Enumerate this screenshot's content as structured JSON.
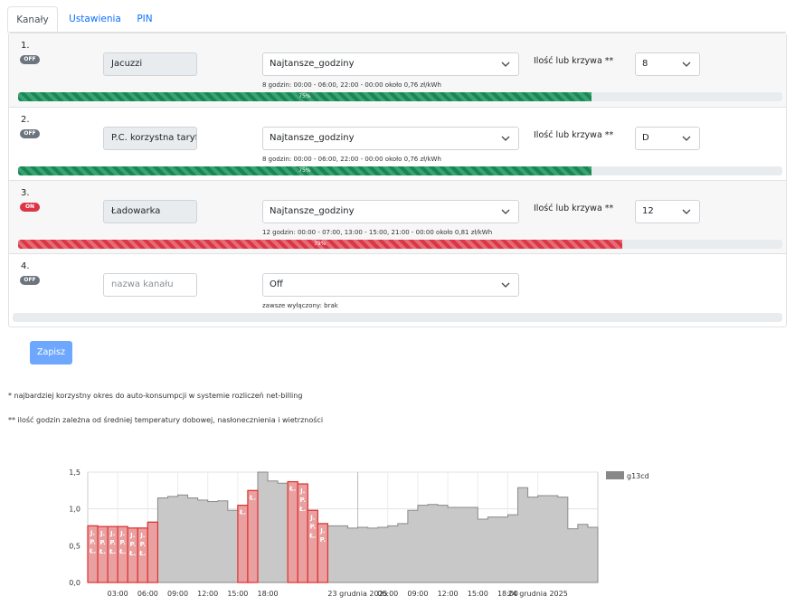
{
  "tabs": [
    {
      "label": "Kanały",
      "active": true
    },
    {
      "label": "Ustawienia",
      "active": false
    },
    {
      "label": "PIN",
      "active": false
    }
  ],
  "channels": [
    {
      "number": "1.",
      "status": "OFF",
      "name": "Jacuzzi",
      "mode": "Najtansze_godziny",
      "ilosc_label": "Ilość lub krzywa **",
      "ilosc_value": "8",
      "description": "8 godzin: 00:00 - 06:00, 22:00 - 00:00 około 0,76 zł/kWh",
      "progress": 75,
      "progress_label": "75%",
      "progress_color": "#198754"
    },
    {
      "number": "2.",
      "status": "OFF",
      "name": "P.C. korzystna taryf",
      "mode": "Najtansze_godziny",
      "ilosc_label": "Ilość lub krzywa **",
      "ilosc_value": "D",
      "description": "8 godzin: 00:00 - 06:00, 22:00 - 00:00 około 0,76 zł/kWh",
      "progress": 75,
      "progress_label": "75%",
      "progress_color": "#198754"
    },
    {
      "number": "3.",
      "status": "ON",
      "name": "Ładowarka",
      "mode": "Najtansze_godziny",
      "ilosc_label": "Ilość lub krzywa **",
      "ilosc_value": "12",
      "description": "12 godzin: 00:00 - 07:00, 13:00 - 15:00, 21:00 - 00:00 około 0,81 zł/kWh",
      "progress": 79,
      "progress_label": "79%",
      "progress_color": "#dc3545"
    },
    {
      "number": "4.",
      "status": "OFF",
      "name": "",
      "name_placeholder": "nazwa kanału",
      "mode": "Off",
      "description": "zawsze wyłączony: brak",
      "progress": 0,
      "progress_label": ""
    }
  ],
  "save_label": "Zapisz",
  "notes": [
    "* najbardziej korzystny okres do auto-konsumpcji w systemie rozliczeń net-billing",
    "** ilość godzin zależna od średniej temperatury dobowej, nasłonecznienia i wietrzności"
  ],
  "chart_data": {
    "type": "area",
    "legend": "g13cd",
    "legend_position": "top-right",
    "grid": true,
    "ylim": [
      0,
      1.5
    ],
    "yticks": [
      "0,0",
      "0,5",
      "1,0",
      "1,5"
    ],
    "xticks": [
      "03:00",
      "06:00",
      "09:00",
      "12:00",
      "15:00",
      "18:00",
      "23 grudnia 2025",
      "06:00",
      "09:00",
      "12:00",
      "15:00",
      "18:00",
      "24 grudnia 2025"
    ],
    "colors": {
      "series": "#c8c8c8",
      "highlight": "#e8a0a0",
      "highlight_line": "#e03030"
    },
    "values": [
      0.77,
      0.76,
      0.76,
      0.76,
      0.74,
      0.74,
      0.82,
      1.15,
      1.17,
      1.19,
      1.15,
      1.12,
      1.1,
      1.11,
      0.98,
      1.05,
      1.25,
      1.5,
      1.38,
      1.35,
      1.37,
      1.34,
      0.98,
      0.8,
      0.77,
      0.77,
      0.74,
      0.75,
      0.74,
      0.75,
      0.77,
      0.8,
      0.98,
      1.05,
      1.06,
      1.05,
      1.02,
      1.02,
      1.02,
      0.86,
      0.89,
      0.89,
      0.92,
      1.29,
      1.16,
      1.18,
      1.18,
      1.16,
      0.73,
      0.79,
      0.75
    ],
    "highlighted": [
      0,
      1,
      2,
      3,
      4,
      5,
      6,
      15,
      16,
      20,
      21,
      22,
      23
    ],
    "markers": [
      {
        "index": 0,
        "text": "J.P.Ł."
      },
      {
        "index": 1,
        "text": "J.P.Ł."
      },
      {
        "index": 2,
        "text": "J.P.Ł."
      },
      {
        "index": 3,
        "text": "J.P.Ł."
      },
      {
        "index": 4,
        "text": "J.P.Ł."
      },
      {
        "index": 5,
        "text": "J.P.Ł."
      },
      {
        "index": 6,
        "text": ""
      },
      {
        "index": 15,
        "text": "Ł."
      },
      {
        "index": 16,
        "text": "Ł."
      },
      {
        "index": 20,
        "text": "Ł."
      },
      {
        "index": 21,
        "text": "J.P.Ł."
      },
      {
        "index": 22,
        "text": "J.P.Ł."
      },
      {
        "index": 23,
        "text": "J.P."
      }
    ]
  }
}
